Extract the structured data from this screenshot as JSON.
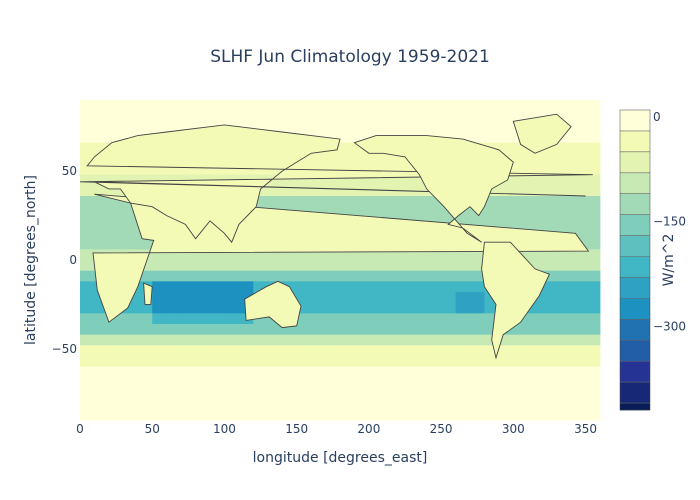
{
  "chart_data": {
    "type": "heatmap",
    "title": "SLHF Jun Climatology 1959-2021",
    "xlabel": "longitude [degrees_east]",
    "ylabel": "latitude [degrees_north]",
    "xlim": [
      0,
      360
    ],
    "ylim": [
      -90,
      90
    ],
    "x_ticks": [
      0,
      50,
      100,
      150,
      200,
      250,
      300,
      350
    ],
    "y_ticks": [
      50,
      0,
      -50
    ],
    "colorbar": {
      "label": "W/m^2",
      "ticks": [
        0,
        -150,
        -300
      ],
      "range": [
        -420,
        10
      ],
      "levels": [
        10,
        -20,
        -50,
        -80,
        -110,
        -140,
        -170,
        -200,
        -230,
        -260,
        -290,
        -320,
        -350,
        -380,
        -410
      ],
      "colors": [
        "#ffffd9",
        "#f3fab6",
        "#e2f3b2",
        "#c7e9b4",
        "#a2dab7",
        "#7fcdbb",
        "#5fc0c0",
        "#41b6c4",
        "#2fa2c3",
        "#1d91c0",
        "#2072b1",
        "#225ea8",
        "#253494",
        "#172976",
        "#081d58"
      ]
    },
    "contour_color": "#444444"
  }
}
